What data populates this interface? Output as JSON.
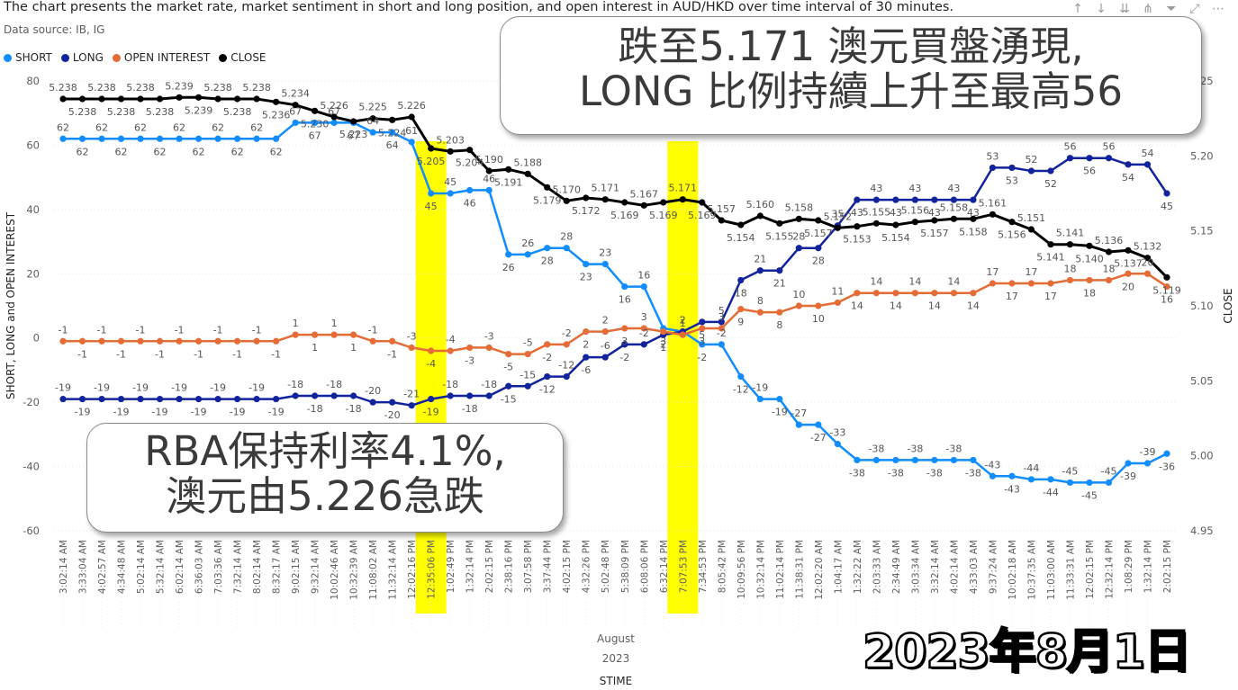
{
  "title": "The chart presents the market rate, market sentiment in short and long position, and open interest in AUD/HKD over time interval of 30 minutes.",
  "source": "Data source: IB, IG",
  "toolbar_icons": [
    "arrow-up-icon",
    "arrow-down-icon",
    "double-arrow-down-icon",
    "expand-hierarchy-icon",
    "filter-icon",
    "focus-mode-icon",
    "more-options-icon"
  ],
  "callouts": {
    "top_line1": "跌至5.171 澳元買盤湧現,",
    "top_line2": "LONG 比例持續上升至最高56",
    "bottom_line1": "RBA保持利率4.1%,",
    "bottom_line2": "澳元由5.226急跌"
  },
  "stamp": "2023年8月1日",
  "colors": {
    "short": "#118dff",
    "long": "#12239e",
    "open_interest": "#e66c37",
    "close": "#000000",
    "highlight": "#ffff00"
  },
  "chart_data": {
    "type": "line",
    "legend": [
      "SHORT",
      "LONG",
      "OPEN INTEREST",
      "CLOSE"
    ],
    "legend_position": "top-left",
    "ylabel": "SHORT, LONG and OPEN INTEREST",
    "y2label": "CLOSE",
    "xlabel": "STIME",
    "x_group_month": "August",
    "x_group_year": "2023",
    "ylim": [
      -60,
      80
    ],
    "y_ticks": [
      "80",
      "60",
      "40",
      "20",
      "0",
      "-20",
      "-40",
      "-60"
    ],
    "y2lim": [
      4.95,
      5.25
    ],
    "y2_ticks": [
      "5.25",
      "5.20",
      "5.15",
      "5.10",
      "5.05",
      "5.00",
      "4.95"
    ],
    "highlighted_categories": [
      "12:35:06 PM",
      "7:07:53 PM"
    ],
    "categories": [
      "3:02:14 AM",
      "3:33:04 AM",
      "4:02:57 AM",
      "4:34:48 AM",
      "5:02:14 AM",
      "5:32:14 AM",
      "6:02:14 AM",
      "6:36:03 AM",
      "7:03:36 AM",
      "7:32:14 AM",
      "8:02:14 AM",
      "8:32:17 AM",
      "9:02:15 AM",
      "9:32:14 AM",
      "10:02:46 AM",
      "10:32:39 AM",
      "11:08:02 AM",
      "11:32:14 AM",
      "12:02:16 PM",
      "12:35:06 PM",
      "1:02:49 PM",
      "1:32:14 PM",
      "2:02:15 PM",
      "2:38:16 PM",
      "3:07:58 PM",
      "3:37:44 PM",
      "4:02:15 PM",
      "4:32:26 PM",
      "5:02:48 PM",
      "5:38:09 PM",
      "6:08:06 PM",
      "6:32:14 PM",
      "7:07:53 PM",
      "7:34:53 PM",
      "8:05:42 PM",
      "10:09:56 PM",
      "10:32:14 PM",
      "11:02:14 PM",
      "11:38:31 PM",
      "12:02:20 AM",
      "1:04:17 AM",
      "1:32:22 AM",
      "2:03:33 AM",
      "2:34:49 AM",
      "3:03:34 AM",
      "3:32:14 AM",
      "4:02:14 AM",
      "4:33:03 AM",
      "9:37:24 AM",
      "10:02:18 AM",
      "10:37:35 AM",
      "11:03:00 AM",
      "11:33:31 AM",
      "12:02:15 PM",
      "12:32:14 PM",
      "1:08:29 PM",
      "1:32:14 PM",
      "2:02:15 PM"
    ],
    "series": [
      {
        "name": "SHORT",
        "values": [
          62,
          62,
          62,
          62,
          62,
          62,
          62,
          62,
          62,
          62,
          62,
          62,
          67,
          67,
          67,
          67,
          64,
          64,
          61,
          45,
          45,
          46,
          46,
          26,
          26,
          28,
          28,
          23,
          23,
          16,
          16,
          3,
          2,
          -2,
          -2,
          -12,
          -19,
          -19,
          -27,
          -27,
          -33,
          -38,
          -38,
          -38,
          -38,
          -38,
          -38,
          -38,
          -43,
          -43,
          -44,
          -44,
          -45,
          -45,
          -45,
          -39,
          -39,
          -36
        ]
      },
      {
        "name": "LONG",
        "values": [
          -19,
          -19,
          -19,
          -19,
          -19,
          -19,
          -19,
          -19,
          -19,
          -19,
          -19,
          -19,
          -18,
          -18,
          -18,
          -18,
          -20,
          -20,
          -21,
          -19,
          -18,
          -18,
          -18,
          -15,
          -15,
          -12,
          -12,
          -6,
          -6,
          -2,
          -2,
          1,
          2,
          5,
          5,
          18,
          21,
          21,
          28,
          28,
          35,
          43,
          43,
          43,
          43,
          43,
          43,
          43,
          53,
          53,
          52,
          52,
          56,
          56,
          56,
          54,
          54,
          45
        ]
      },
      {
        "name": "OPEN INTEREST",
        "values": [
          -1,
          -1,
          -1,
          -1,
          -1,
          -1,
          -1,
          -1,
          -1,
          -1,
          -1,
          -1,
          1,
          1,
          1,
          1,
          -1,
          -1,
          -3,
          -4,
          -4,
          -3,
          -3,
          -5,
          -5,
          -2,
          -2,
          2,
          2,
          3,
          3,
          2,
          1,
          3,
          3,
          9,
          8,
          8,
          10,
          10,
          11,
          14,
          14,
          14,
          14,
          14,
          14,
          14,
          17,
          17,
          17,
          17,
          18,
          18,
          18,
          20,
          20,
          16
        ]
      },
      {
        "name": "CLOSE",
        "axis": "right",
        "values": [
          5.238,
          5.238,
          5.238,
          5.238,
          5.238,
          5.238,
          5.239,
          5.239,
          5.238,
          5.238,
          5.238,
          5.236,
          5.234,
          5.23,
          5.226,
          5.223,
          5.225,
          5.224,
          5.226,
          5.205,
          5.203,
          5.204,
          5.19,
          5.191,
          5.188,
          5.179,
          5.17,
          5.172,
          5.171,
          5.169,
          5.167,
          5.169,
          5.171,
          5.169,
          5.157,
          5.154,
          5.16,
          5.155,
          5.158,
          5.157,
          5.152,
          5.153,
          5.155,
          5.154,
          5.156,
          5.157,
          5.158,
          5.158,
          5.161,
          5.156,
          5.151,
          5.141,
          5.141,
          5.14,
          5.136,
          5.137,
          5.132,
          5.119
        ]
      }
    ]
  }
}
